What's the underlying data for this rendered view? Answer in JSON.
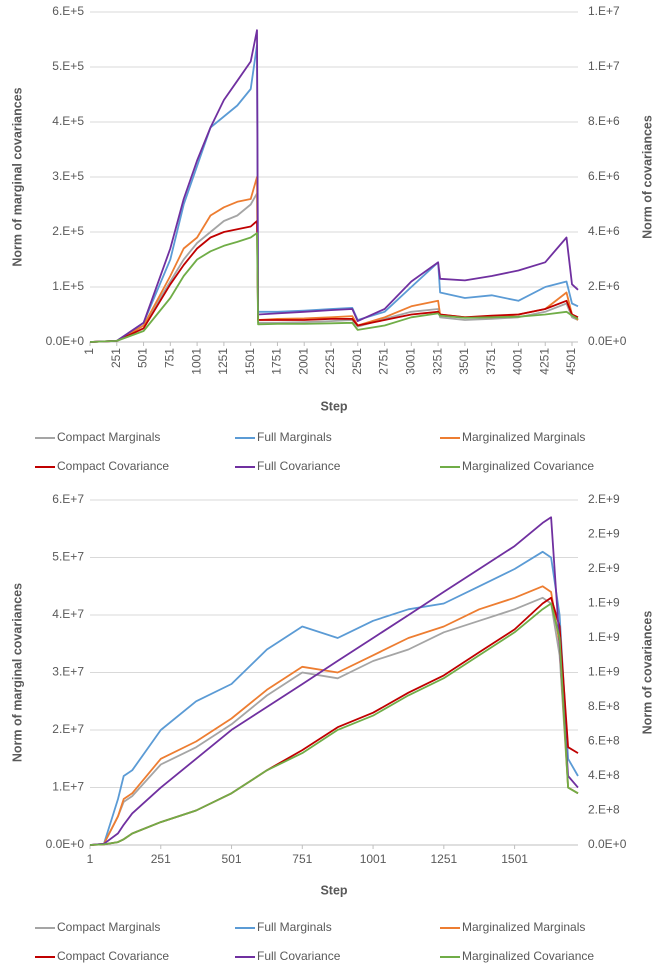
{
  "chart_data": [
    {
      "type": "line",
      "x_label": "Step",
      "y_label": "Norm of marginal covariances",
      "y2_label": "Norm of covariances",
      "x": [
        1,
        251,
        501,
        751,
        876,
        1001,
        1126,
        1251,
        1376,
        1501,
        1560,
        1570,
        1751,
        2001,
        2251,
        2450,
        2500,
        2751,
        3001,
        3251,
        3270,
        3501,
        3751,
        4001,
        4251,
        4450,
        4501,
        4557
      ],
      "xlim": [
        1,
        4557
      ],
      "xticks": [
        1,
        251,
        501,
        751,
        1001,
        1251,
        1501,
        1751,
        2001,
        2251,
        2501,
        2751,
        3001,
        3251,
        3501,
        3751,
        4001,
        4251,
        4501
      ],
      "ylim": [
        0,
        600000
      ],
      "yticks": [
        {
          "value": 0,
          "label": "0.0E+0"
        },
        {
          "value": 100000,
          "label": "1.E+5"
        },
        {
          "value": 200000,
          "label": "2.E+5"
        },
        {
          "value": 300000,
          "label": "3.E+5"
        },
        {
          "value": 400000,
          "label": "4.E+5"
        },
        {
          "value": 500000,
          "label": "5.E+5"
        },
        {
          "value": 600000,
          "label": "6.E+5"
        }
      ],
      "y2lim": [
        0,
        12000000
      ],
      "y2ticks": [
        {
          "value": 0,
          "label": "0.0E+0"
        },
        {
          "value": 2000000,
          "label": "2.E+6"
        },
        {
          "value": 4000000,
          "label": "4.E+6"
        },
        {
          "value": 6000000,
          "label": "6.E+6"
        },
        {
          "value": 8000000,
          "label": "8.E+6"
        },
        {
          "value": 10000000,
          "label": "1.E+7"
        },
        {
          "value": 12000000,
          "label": "1.E+7"
        }
      ],
      "grid": true,
      "series": [
        {
          "name": "Compact Marginals",
          "color": "#a5a5a5",
          "axis": "y",
          "values": [
            0,
            2000,
            30000,
            110000,
            150000,
            180000,
            200000,
            220000,
            230000,
            250000,
            270000,
            35000,
            35000,
            36000,
            38000,
            40000,
            28000,
            42000,
            55000,
            60000,
            45000,
            40000,
            42000,
            45000,
            55000,
            70000,
            45000,
            40000
          ]
        },
        {
          "name": "Full Marginals",
          "color": "#5b9bd5",
          "axis": "y",
          "values": [
            0,
            2000,
            35000,
            150000,
            250000,
            320000,
            390000,
            410000,
            430000,
            460000,
            540000,
            55000,
            55000,
            57000,
            60000,
            62000,
            40000,
            55000,
            100000,
            145000,
            90000,
            80000,
            85000,
            75000,
            100000,
            110000,
            70000,
            65000
          ]
        },
        {
          "name": "Marginalized Marginals",
          "color": "#ed7d31",
          "axis": "y",
          "values": [
            0,
            2000,
            30000,
            120000,
            170000,
            190000,
            230000,
            245000,
            255000,
            260000,
            300000,
            40000,
            42000,
            43000,
            45000,
            47000,
            30000,
            45000,
            65000,
            75000,
            50000,
            45000,
            45000,
            50000,
            60000,
            90000,
            50000,
            40000
          ]
        },
        {
          "name": "Compact Covariance",
          "color": "#c00000",
          "axis": "y2",
          "values": [
            0,
            40000,
            500000,
            2100000,
            2800000,
            3400000,
            3800000,
            4000000,
            4100000,
            4200000,
            4400000,
            800000,
            800000,
            800000,
            840000,
            840000,
            600000,
            800000,
            1000000,
            1100000,
            1000000,
            900000,
            960000,
            1000000,
            1200000,
            1500000,
            1000000,
            900000
          ]
        },
        {
          "name": "Full Covariance",
          "color": "#7030a0",
          "axis": "y2",
          "values": [
            0,
            40000,
            700000,
            3400000,
            5200000,
            6600000,
            7800000,
            8800000,
            9500000,
            10200000,
            11340000,
            1000000,
            1040000,
            1100000,
            1160000,
            1200000,
            760000,
            1200000,
            2200000,
            2900000,
            2300000,
            2240000,
            2400000,
            2600000,
            2900000,
            3800000,
            2100000,
            1900000
          ]
        },
        {
          "name": "Marginalized Covariance",
          "color": "#70ad47",
          "axis": "y2",
          "values": [
            0,
            40000,
            400000,
            1600000,
            2400000,
            3000000,
            3300000,
            3500000,
            3640000,
            3800000,
            3960000,
            640000,
            660000,
            660000,
            680000,
            700000,
            440000,
            600000,
            900000,
            1040000,
            960000,
            880000,
            900000,
            920000,
            1000000,
            1100000,
            960000,
            840000
          ]
        }
      ]
    },
    {
      "type": "line",
      "x_label": "Step",
      "y_label": "Norm of marginal covariances",
      "y2_label": "Norm of covariances",
      "x": [
        1,
        50,
        100,
        120,
        150,
        251,
        376,
        501,
        626,
        751,
        876,
        1001,
        1126,
        1251,
        1376,
        1501,
        1600,
        1630,
        1660,
        1690,
        1725
      ],
      "xlim": [
        1,
        1725
      ],
      "xticks": [
        1,
        251,
        501,
        751,
        1001,
        1251,
        1501
      ],
      "ylim": [
        0,
        60000000
      ],
      "yticks": [
        {
          "value": 0,
          "label": "0.0E+0"
        },
        {
          "value": 10000000,
          "label": "1.E+7"
        },
        {
          "value": 20000000,
          "label": "2.E+7"
        },
        {
          "value": 30000000,
          "label": "3.E+7"
        },
        {
          "value": 40000000,
          "label": "4.E+7"
        },
        {
          "value": 50000000,
          "label": "5.E+7"
        },
        {
          "value": 60000000,
          "label": "6.E+7"
        }
      ],
      "y2lim": [
        0,
        2000000000
      ],
      "y2ticks": [
        {
          "value": 0,
          "label": "0.0E+0"
        },
        {
          "value": 200000000,
          "label": "2.E+8"
        },
        {
          "value": 400000000,
          "label": "4.E+8"
        },
        {
          "value": 600000000,
          "label": "6.E+8"
        },
        {
          "value": 800000000,
          "label": "8.E+8"
        },
        {
          "value": 1000000000,
          "label": "1.E+9"
        },
        {
          "value": 1200000000,
          "label": "1.E+9"
        },
        {
          "value": 1400000000,
          "label": "1.E+9"
        },
        {
          "value": 1600000000,
          "label": "2.E+9"
        },
        {
          "value": 1800000000,
          "label": "2.E+9"
        },
        {
          "value": 2000000000,
          "label": "2.E+9"
        }
      ],
      "grid": true,
      "series": [
        {
          "name": "Compact Marginals",
          "color": "#a5a5a5",
          "axis": "y",
          "values": [
            0,
            200000,
            5000000,
            7500000,
            8500000,
            14000000,
            17000000,
            21000000,
            26000000,
            30000000,
            29000000,
            32000000,
            34000000,
            37000000,
            39000000,
            41000000,
            43000000,
            42000000,
            33000000,
            10000000,
            9000000
          ]
        },
        {
          "name": "Full Marginals",
          "color": "#5b9bd5",
          "axis": "y",
          "values": [
            0,
            200000,
            8000000,
            12000000,
            13000000,
            20000000,
            25000000,
            28000000,
            34000000,
            38000000,
            36000000,
            39000000,
            41000000,
            42000000,
            45000000,
            48000000,
            51000000,
            50000000,
            40000000,
            15000000,
            12000000
          ]
        },
        {
          "name": "Marginalized Marginals",
          "color": "#ed7d31",
          "axis": "y",
          "values": [
            0,
            200000,
            5000000,
            8000000,
            9000000,
            15000000,
            18000000,
            22000000,
            27000000,
            31000000,
            30000000,
            33000000,
            36000000,
            38000000,
            41000000,
            43000000,
            45000000,
            44000000,
            35000000,
            10000000,
            9000000
          ]
        },
        {
          "name": "Compact Covariance",
          "color": "#c00000",
          "axis": "y2",
          "values": [
            0,
            3300000,
            16700000,
            33300000,
            66700000,
            133000000,
            200000000,
            300000000,
            433000000,
            550000000,
            683000000,
            767000000,
            883000000,
            983000000,
            1117000000,
            1250000000,
            1400000000,
            1433000000,
            1267000000,
            567000000,
            533000000
          ]
        },
        {
          "name": "Full Covariance",
          "color": "#7030a0",
          "axis": "y2",
          "values": [
            0,
            6700000,
            67000000,
            117000000,
            183000000,
            333000000,
            500000000,
            667000000,
            800000000,
            933000000,
            1067000000,
            1200000000,
            1333000000,
            1467000000,
            1600000000,
            1733000000,
            1867000000,
            1900000000,
            1167000000,
            400000000,
            333000000
          ]
        },
        {
          "name": "Marginalized Covariance",
          "color": "#70ad47",
          "axis": "y2",
          "values": [
            0,
            3300000,
            16700000,
            33300000,
            66700000,
            133000000,
            200000000,
            300000000,
            433000000,
            533000000,
            667000000,
            750000000,
            867000000,
            967000000,
            1100000000,
            1233000000,
            1367000000,
            1400000000,
            1200000000,
            333000000,
            300000000
          ]
        }
      ]
    }
  ]
}
